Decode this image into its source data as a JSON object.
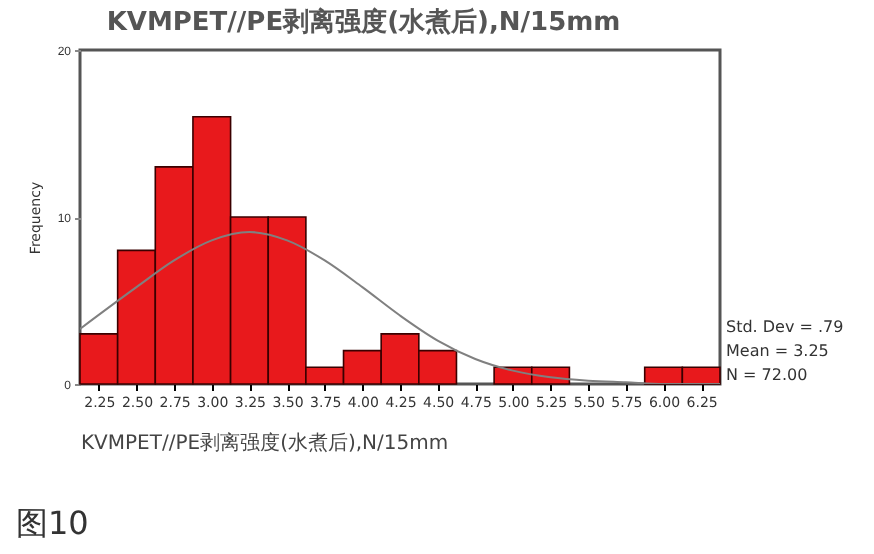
{
  "chart_data": {
    "type": "histogram",
    "title": "KVMPET//PE剥离强度(水煮后),N/15mm",
    "xlabel": "KVMPET//PE剥离强度(水煮后),N/15mm",
    "ylabel": "Frequency",
    "bins": [
      2.125,
      2.375,
      2.625,
      2.875,
      3.125,
      3.375,
      3.625,
      3.875,
      4.125,
      4.375,
      4.625,
      4.875,
      5.125,
      5.375,
      5.625,
      5.875,
      6.125,
      6.375
    ],
    "values": [
      3,
      8,
      13,
      16,
      10,
      10,
      1,
      2,
      3,
      2,
      0,
      1,
      1,
      0,
      0,
      1,
      1
    ],
    "color": "#e8191c",
    "series": [
      {
        "type": "line",
        "color": "#808080",
        "x": [
          2.125,
          2.5,
          2.75,
          3.0,
          3.25,
          3.5,
          3.75,
          4.0,
          4.25,
          4.5,
          4.75,
          5.0,
          5.25,
          5.5,
          5.75,
          6.0,
          6.375
        ],
        "values": [
          3.3,
          5.8,
          7.4,
          8.6,
          9.1,
          8.6,
          7.4,
          5.8,
          4.1,
          2.6,
          1.5,
          0.8,
          0.4,
          0.2,
          0.1,
          0,
          0
        ]
      }
    ],
    "xlim": [
      2.125,
      6.375
    ],
    "xticks": [
      {
        "value": 2.25,
        "label": "2.25"
      },
      {
        "value": 2.5,
        "label": "2.50"
      },
      {
        "value": 2.75,
        "label": "2.75"
      },
      {
        "value": 3.0,
        "label": "3.00"
      },
      {
        "value": 3.25,
        "label": "3.25"
      },
      {
        "value": 3.5,
        "label": "3.50"
      },
      {
        "value": 3.75,
        "label": "3.75"
      },
      {
        "value": 4.0,
        "label": "4.00"
      },
      {
        "value": 4.25,
        "label": "4.25"
      },
      {
        "value": 4.5,
        "label": "4.50"
      },
      {
        "value": 4.75,
        "label": "4.75"
      },
      {
        "value": 5.0,
        "label": "5.00"
      },
      {
        "value": 5.25,
        "label": "5.25"
      },
      {
        "value": 5.5,
        "label": "5.50"
      },
      {
        "value": 5.75,
        "label": "5.75"
      },
      {
        "value": 6.0,
        "label": "6.00"
      },
      {
        "value": 6.25,
        "label": "6.25"
      }
    ],
    "ylim": [
      0,
      20
    ],
    "yticks": [
      0,
      10,
      20
    ],
    "annotations": [
      "Std. Dev = .79",
      "Mean = 3.25",
      "N = 72.00",
      "图10"
    ]
  }
}
